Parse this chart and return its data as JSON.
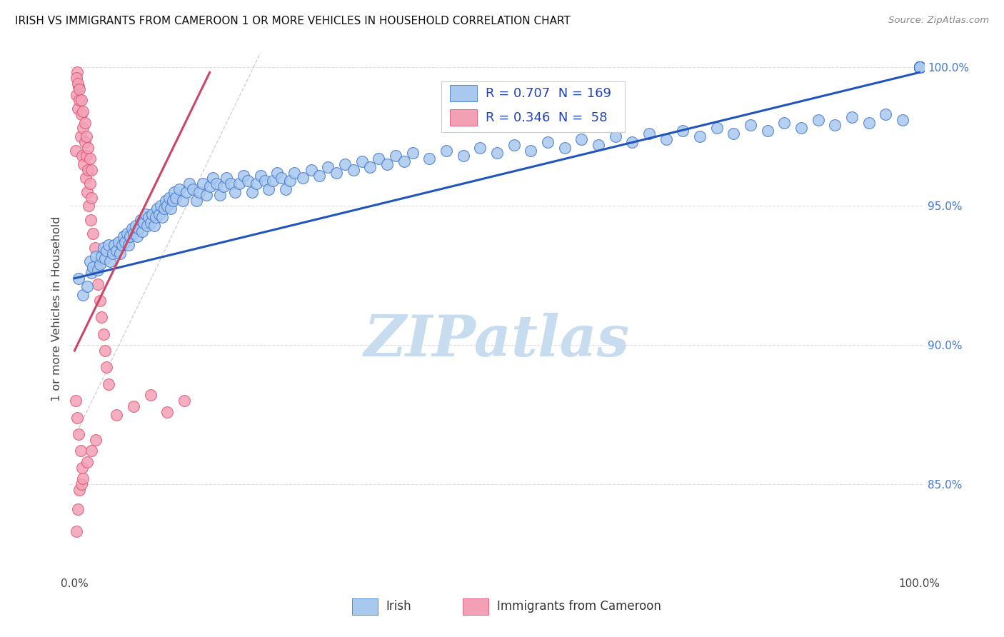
{
  "title": "IRISH VS IMMIGRANTS FROM CAMEROON 1 OR MORE VEHICLES IN HOUSEHOLD CORRELATION CHART",
  "source": "Source: ZipAtlas.com",
  "ylabel": "1 or more Vehicles in Household",
  "legend_irish_R": "0.707",
  "legend_irish_N": "169",
  "legend_cam_R": "0.346",
  "legend_cam_N": "58",
  "blue_fill": "#A8C8EE",
  "blue_edge": "#4477CC",
  "pink_fill": "#F4A0B4",
  "pink_edge": "#DD5577",
  "blue_line": "#2255BB",
  "pink_line": "#CC4466",
  "legend_r_color": "#2244BB",
  "watermark_color": "#C8DCF0",
  "ref_line_color": "#CCCCCC",
  "grid_color": "#DDDDDD",
  "right_tick_color": "#4477CC",
  "xlim_min": -0.005,
  "xlim_max": 1.005,
  "ylim_min": 0.818,
  "ylim_max": 1.008,
  "irish_x": [
    0.005,
    0.01,
    0.015,
    0.018,
    0.02,
    0.022,
    0.025,
    0.028,
    0.03,
    0.032,
    0.034,
    0.036,
    0.038,
    0.04,
    0.042,
    0.045,
    0.047,
    0.05,
    0.052,
    0.054,
    0.056,
    0.058,
    0.06,
    0.062,
    0.064,
    0.066,
    0.068,
    0.07,
    0.072,
    0.074,
    0.076,
    0.078,
    0.08,
    0.082,
    0.084,
    0.086,
    0.088,
    0.09,
    0.092,
    0.094,
    0.096,
    0.098,
    0.1,
    0.102,
    0.104,
    0.106,
    0.108,
    0.11,
    0.112,
    0.114,
    0.116,
    0.118,
    0.12,
    0.124,
    0.128,
    0.132,
    0.136,
    0.14,
    0.144,
    0.148,
    0.152,
    0.156,
    0.16,
    0.164,
    0.168,
    0.172,
    0.176,
    0.18,
    0.185,
    0.19,
    0.195,
    0.2,
    0.205,
    0.21,
    0.215,
    0.22,
    0.225,
    0.23,
    0.235,
    0.24,
    0.245,
    0.25,
    0.255,
    0.26,
    0.27,
    0.28,
    0.29,
    0.3,
    0.31,
    0.32,
    0.33,
    0.34,
    0.35,
    0.36,
    0.37,
    0.38,
    0.39,
    0.4,
    0.42,
    0.44,
    0.46,
    0.48,
    0.5,
    0.52,
    0.54,
    0.56,
    0.58,
    0.6,
    0.62,
    0.64,
    0.66,
    0.68,
    0.7,
    0.72,
    0.74,
    0.76,
    0.78,
    0.8,
    0.82,
    0.84,
    0.86,
    0.88,
    0.9,
    0.92,
    0.94,
    0.96,
    0.98,
    1.0,
    1.0,
    1.0,
    1.0,
    1.0,
    1.0,
    1.0,
    1.0,
    1.0,
    1.0,
    1.0,
    1.0,
    1.0,
    1.0,
    1.0,
    1.0,
    1.0,
    1.0,
    1.0,
    1.0,
    1.0,
    1.0,
    1.0,
    1.0,
    1.0,
    1.0,
    1.0,
    1.0,
    1.0,
    1.0,
    1.0,
    1.0,
    1.0,
    1.0,
    1.0,
    1.0,
    1.0,
    1.0,
    1.0
  ],
  "irish_y": [
    0.924,
    0.918,
    0.921,
    0.93,
    0.926,
    0.928,
    0.932,
    0.927,
    0.929,
    0.932,
    0.935,
    0.931,
    0.934,
    0.936,
    0.93,
    0.933,
    0.936,
    0.934,
    0.937,
    0.933,
    0.936,
    0.939,
    0.937,
    0.94,
    0.936,
    0.939,
    0.942,
    0.94,
    0.943,
    0.939,
    0.942,
    0.945,
    0.941,
    0.944,
    0.947,
    0.943,
    0.946,
    0.944,
    0.947,
    0.943,
    0.946,
    0.949,
    0.947,
    0.95,
    0.946,
    0.949,
    0.952,
    0.95,
    0.953,
    0.949,
    0.952,
    0.955,
    0.953,
    0.956,
    0.952,
    0.955,
    0.958,
    0.956,
    0.952,
    0.955,
    0.958,
    0.954,
    0.957,
    0.96,
    0.958,
    0.954,
    0.957,
    0.96,
    0.958,
    0.955,
    0.958,
    0.961,
    0.959,
    0.955,
    0.958,
    0.961,
    0.959,
    0.956,
    0.959,
    0.962,
    0.96,
    0.956,
    0.959,
    0.962,
    0.96,
    0.963,
    0.961,
    0.964,
    0.962,
    0.965,
    0.963,
    0.966,
    0.964,
    0.967,
    0.965,
    0.968,
    0.966,
    0.969,
    0.967,
    0.97,
    0.968,
    0.971,
    0.969,
    0.972,
    0.97,
    0.973,
    0.971,
    0.974,
    0.972,
    0.975,
    0.973,
    0.976,
    0.974,
    0.977,
    0.975,
    0.978,
    0.976,
    0.979,
    0.977,
    0.98,
    0.978,
    0.981,
    0.979,
    0.982,
    0.98,
    0.983,
    0.981,
    1.0,
    1.0,
    1.0,
    1.0,
    1.0,
    1.0,
    1.0,
    1.0,
    1.0,
    1.0,
    1.0,
    1.0,
    1.0,
    1.0,
    1.0,
    1.0,
    1.0,
    1.0,
    1.0,
    1.0,
    1.0,
    1.0,
    1.0,
    1.0,
    1.0,
    1.0,
    1.0,
    1.0,
    1.0,
    1.0,
    1.0,
    1.0,
    1.0,
    1.0,
    1.0,
    1.0,
    1.0,
    1.0,
    1.0
  ],
  "cam_x": [
    0.001,
    0.002,
    0.003,
    0.004,
    0.005,
    0.006,
    0.007,
    0.008,
    0.009,
    0.01,
    0.011,
    0.012,
    0.013,
    0.014,
    0.015,
    0.016,
    0.017,
    0.018,
    0.019,
    0.02,
    0.022,
    0.024,
    0.026,
    0.028,
    0.03,
    0.032,
    0.034,
    0.036,
    0.038,
    0.04,
    0.002,
    0.004,
    0.006,
    0.008,
    0.01,
    0.012,
    0.014,
    0.016,
    0.018,
    0.02,
    0.001,
    0.003,
    0.005,
    0.007,
    0.009,
    0.05,
    0.07,
    0.09,
    0.11,
    0.13,
    0.002,
    0.004,
    0.006,
    0.008,
    0.01,
    0.015,
    0.02,
    0.025
  ],
  "cam_y": [
    0.97,
    0.99,
    0.998,
    0.985,
    0.993,
    0.988,
    0.975,
    0.983,
    0.968,
    0.978,
    0.965,
    0.973,
    0.96,
    0.968,
    0.955,
    0.963,
    0.95,
    0.958,
    0.945,
    0.953,
    0.94,
    0.935,
    0.928,
    0.922,
    0.916,
    0.91,
    0.904,
    0.898,
    0.892,
    0.886,
    0.996,
    0.994,
    0.992,
    0.988,
    0.984,
    0.98,
    0.975,
    0.971,
    0.967,
    0.963,
    0.88,
    0.874,
    0.868,
    0.862,
    0.856,
    0.875,
    0.878,
    0.882,
    0.876,
    0.88,
    0.833,
    0.841,
    0.848,
    0.85,
    0.852,
    0.858,
    0.862,
    0.866
  ],
  "irish_line_x0": 0.0,
  "irish_line_y0": 0.924,
  "irish_line_x1": 1.0,
  "irish_line_y1": 0.998,
  "cam_line_x0": 0.0,
  "cam_line_y0": 0.898,
  "cam_line_x1": 0.16,
  "cam_line_y1": 0.998,
  "ref_line_x0": 0.0,
  "ref_line_x1": 0.22,
  "ref_line_y0": 0.867,
  "ref_line_y1": 1.005
}
